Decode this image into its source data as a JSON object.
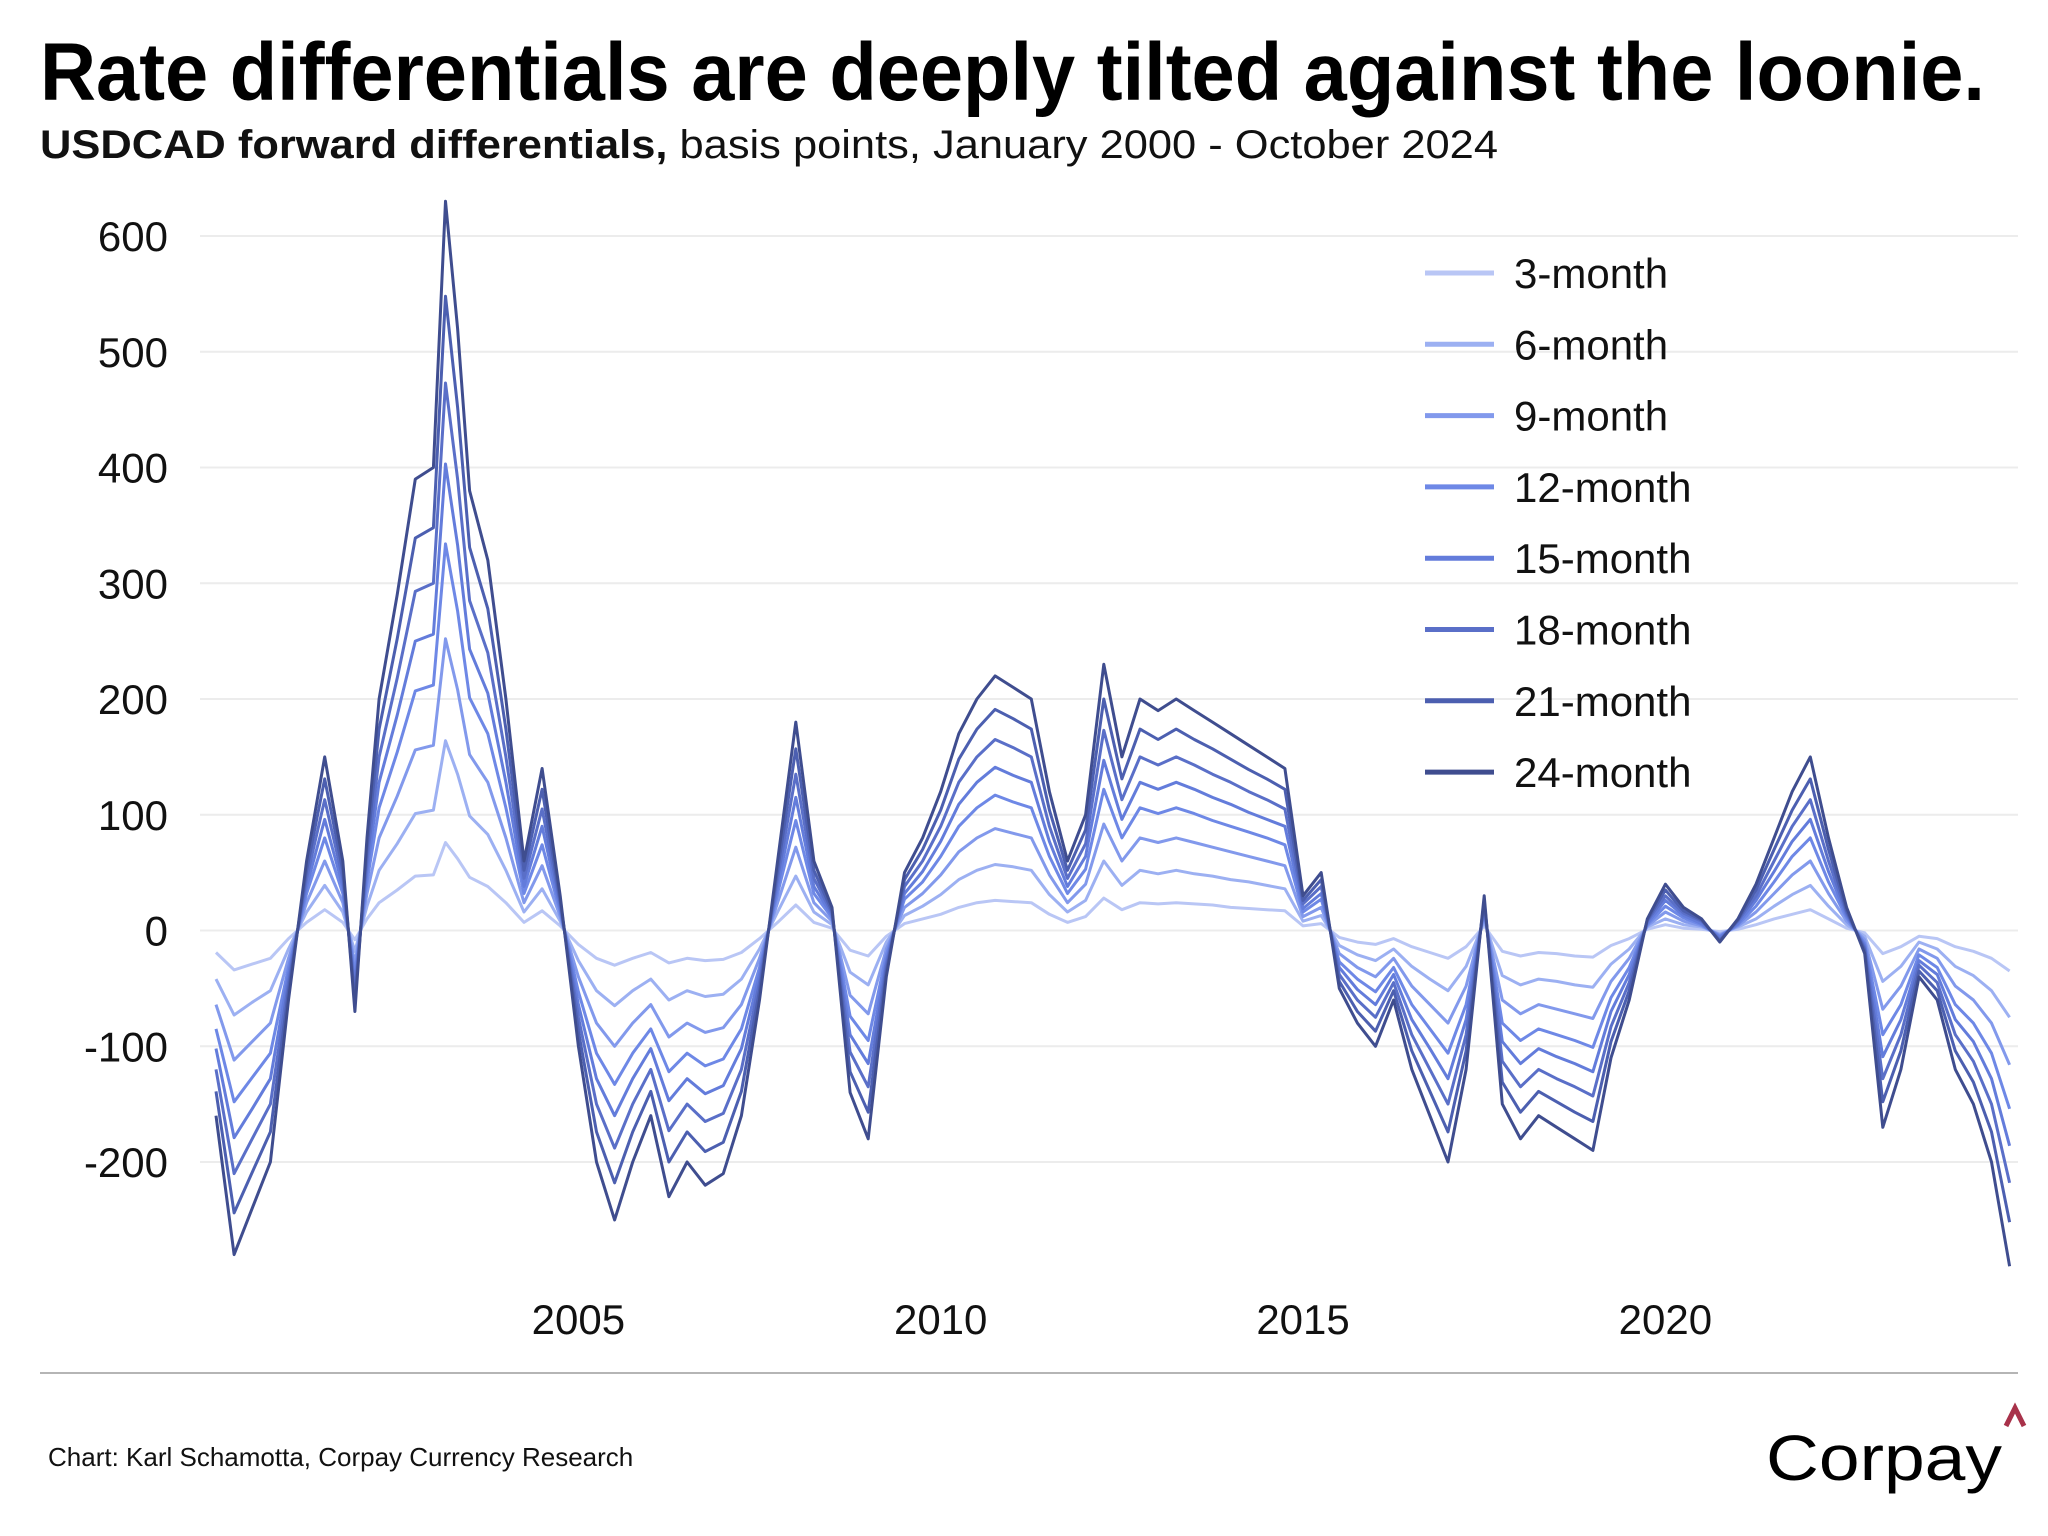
{
  "title": "Rate differentials are deeply tilted against the loonie.",
  "subtitle_bold": "USDCAD forward differentials,",
  "subtitle_rest": " basis points, January 2000 - October 2024",
  "footer": {
    "credit": "Chart: Karl Schamotta, Corpay Currency Research",
    "logo_text": "Corpay",
    "logo_caret": "^",
    "logo_caret_color": "#a8324a"
  },
  "chart_data": {
    "type": "line",
    "title": "Rate differentials are deeply tilted against the loonie.",
    "xlabel": "",
    "ylabel": "",
    "x_ticks": [
      "2005",
      "2010",
      "2015",
      "2020"
    ],
    "y_ticks": [
      600,
      500,
      400,
      300,
      200,
      100,
      0,
      -100,
      -200
    ],
    "ylim": [
      -300,
      640
    ],
    "xlim": [
      "2000-01",
      "2024-10"
    ],
    "grid": "horizontal",
    "legend_placement": "top-right",
    "x": [
      "2000-01",
      "2000-04",
      "2000-07",
      "2000-10",
      "2001-01",
      "2001-04",
      "2001-07",
      "2001-10",
      "2001-12",
      "2002-02",
      "2002-04",
      "2002-07",
      "2002-10",
      "2003-01",
      "2003-03",
      "2003-05",
      "2003-07",
      "2003-10",
      "2004-01",
      "2004-04",
      "2004-07",
      "2004-10",
      "2005-01",
      "2005-04",
      "2005-07",
      "2005-10",
      "2006-01",
      "2006-04",
      "2006-07",
      "2006-10",
      "2007-01",
      "2007-04",
      "2007-07",
      "2007-10",
      "2008-01",
      "2008-04",
      "2008-07",
      "2008-10",
      "2009-01",
      "2009-04",
      "2009-07",
      "2009-10",
      "2010-01",
      "2010-04",
      "2010-07",
      "2010-10",
      "2011-01",
      "2011-04",
      "2011-07",
      "2011-10",
      "2012-01",
      "2012-04",
      "2012-07",
      "2012-10",
      "2013-01",
      "2013-04",
      "2013-07",
      "2013-10",
      "2014-01",
      "2014-04",
      "2014-07",
      "2014-10",
      "2015-01",
      "2015-04",
      "2015-07",
      "2015-10",
      "2016-01",
      "2016-04",
      "2016-07",
      "2016-10",
      "2017-01",
      "2017-04",
      "2017-07",
      "2017-10",
      "2018-01",
      "2018-04",
      "2018-07",
      "2018-10",
      "2019-01",
      "2019-04",
      "2019-07",
      "2019-10",
      "2020-01",
      "2020-04",
      "2020-07",
      "2020-10",
      "2021-01",
      "2021-04",
      "2021-07",
      "2021-10",
      "2022-01",
      "2022-04",
      "2022-07",
      "2022-10",
      "2023-01",
      "2023-04",
      "2023-07",
      "2023-10",
      "2024-01",
      "2024-04",
      "2024-07",
      "2024-10"
    ],
    "series": [
      {
        "name": "3-month",
        "color": "#b9c6f5",
        "values": [
          -19,
          -34,
          -29,
          -24,
          -7,
          7,
          18,
          7,
          -8,
          10,
          24,
          35,
          47,
          48,
          76,
          62,
          46,
          38,
          24,
          7,
          17,
          4,
          -12,
          -24,
          -30,
          -24,
          -19,
          -28,
          -24,
          -26,
          -25,
          -19,
          -7,
          7,
          22,
          7,
          2,
          -17,
          -22,
          -5,
          6,
          10,
          14,
          20,
          24,
          26,
          25,
          24,
          14,
          7,
          12,
          28,
          18,
          24,
          23,
          24,
          23,
          22,
          20,
          19,
          18,
          17,
          4,
          6,
          -6,
          -10,
          -12,
          -7,
          -14,
          -19,
          -24,
          -14,
          4,
          -18,
          -22,
          -19,
          -20,
          -22,
          -23,
          -13,
          -7,
          1,
          5,
          2,
          1,
          -1,
          1,
          5,
          10,
          14,
          18,
          10,
          2,
          -2,
          -20,
          -14,
          -5,
          -7,
          -14,
          -18,
          -24,
          -35
        ]
      },
      {
        "name": "6-month",
        "color": "#9cb0f2",
        "values": [
          -42,
          -73,
          -62,
          -52,
          -16,
          16,
          39,
          16,
          -18,
          21,
          52,
          75,
          101,
          104,
          164,
          135,
          99,
          83,
          52,
          16,
          36,
          8,
          -26,
          -52,
          -65,
          -52,
          -42,
          -60,
          -52,
          -57,
          -55,
          -42,
          -16,
          16,
          47,
          16,
          5,
          -36,
          -47,
          -10,
          13,
          21,
          31,
          44,
          52,
          57,
          55,
          52,
          31,
          16,
          26,
          60,
          39,
          52,
          49,
          52,
          49,
          47,
          44,
          42,
          39,
          36,
          8,
          13,
          -13,
          -21,
          -26,
          -16,
          -31,
          -42,
          -52,
          -31,
          8,
          -39,
          -47,
          -42,
          -44,
          -47,
          -49,
          -29,
          -16,
          3,
          10,
          5,
          3,
          -3,
          3,
          10,
          21,
          31,
          39,
          21,
          5,
          -5,
          -44,
          -31,
          -10,
          -16,
          -31,
          -39,
          -52,
          -75
        ]
      },
      {
        "name": "9-month",
        "color": "#8299ec",
        "values": [
          -64,
          -112,
          -96,
          -80,
          -24,
          24,
          60,
          24,
          -28,
          32,
          80,
          116,
          156,
          160,
          252,
          208,
          152,
          128,
          80,
          24,
          56,
          12,
          -40,
          -80,
          -100,
          -80,
          -64,
          -92,
          -80,
          -88,
          -84,
          -64,
          -24,
          24,
          72,
          24,
          8,
          -56,
          -72,
          -16,
          20,
          32,
          48,
          68,
          80,
          88,
          84,
          80,
          48,
          24,
          40,
          92,
          60,
          80,
          76,
          80,
          76,
          72,
          68,
          64,
          60,
          56,
          12,
          20,
          -20,
          -32,
          -40,
          -24,
          -48,
          -64,
          -80,
          -48,
          12,
          -60,
          -72,
          -64,
          -68,
          -72,
          -76,
          -44,
          -24,
          4,
          16,
          8,
          4,
          -4,
          4,
          16,
          32,
          48,
          60,
          32,
          8,
          -8,
          -68,
          -48,
          -16,
          -24,
          -48,
          -60,
          -80,
          -116
        ]
      },
      {
        "name": "12-month",
        "color": "#6e88e6",
        "values": [
          -85,
          -148,
          -127,
          -106,
          -32,
          32,
          80,
          32,
          -37,
          42,
          106,
          154,
          207,
          212,
          334,
          276,
          201,
          170,
          106,
          32,
          74,
          16,
          -53,
          -106,
          -133,
          -106,
          -85,
          -122,
          -106,
          -117,
          -111,
          -85,
          -32,
          32,
          95,
          32,
          11,
          -74,
          -95,
          -21,
          27,
          42,
          64,
          90,
          106,
          117,
          111,
          106,
          64,
          32,
          53,
          122,
          80,
          106,
          101,
          106,
          101,
          95,
          90,
          85,
          80,
          74,
          16,
          27,
          -27,
          -42,
          -53,
          -32,
          -64,
          -85,
          -106,
          -64,
          16,
          -80,
          -95,
          -85,
          -90,
          -95,
          -101,
          -58,
          -32,
          5,
          21,
          11,
          5,
          -5,
          5,
          21,
          42,
          64,
          80,
          42,
          11,
          -11,
          -90,
          -64,
          -21,
          -32,
          -64,
          -80,
          -106,
          -154
        ]
      },
      {
        "name": "15-month",
        "color": "#637cdb",
        "values": [
          -102,
          -179,
          -154,
          -128,
          -38,
          38,
          96,
          38,
          -45,
          51,
          128,
          186,
          250,
          256,
          403,
          333,
          243,
          205,
          128,
          38,
          90,
          19,
          -64,
          -128,
          -160,
          -128,
          -102,
          -147,
          -128,
          -141,
          -134,
          -102,
          -38,
          38,
          115,
          38,
          13,
          -90,
          -115,
          -26,
          32,
          51,
          77,
          109,
          128,
          141,
          134,
          128,
          77,
          38,
          64,
          147,
          96,
          128,
          122,
          128,
          122,
          115,
          109,
          102,
          96,
          90,
          19,
          32,
          -32,
          -51,
          -64,
          -38,
          -77,
          -102,
          -128,
          -77,
          19,
          -96,
          -115,
          -102,
          -109,
          -115,
          -122,
          -70,
          -38,
          6,
          26,
          13,
          6,
          -6,
          6,
          26,
          51,
          77,
          96,
          51,
          13,
          -13,
          -109,
          -77,
          -26,
          -38,
          -77,
          -96,
          -128,
          -186
        ]
      },
      {
        "name": "18-month",
        "color": "#5a6fc8",
        "values": [
          -120,
          -210,
          -180,
          -150,
          -45,
          45,
          113,
          45,
          -53,
          60,
          150,
          218,
          293,
          300,
          473,
          390,
          285,
          240,
          150,
          45,
          105,
          23,
          -75,
          -150,
          -188,
          -150,
          -120,
          -173,
          -150,
          -165,
          -158,
          -120,
          -45,
          45,
          135,
          45,
          15,
          -105,
          -135,
          -30,
          38,
          60,
          90,
          128,
          150,
          165,
          158,
          150,
          90,
          45,
          75,
          173,
          113,
          150,
          143,
          150,
          143,
          135,
          128,
          120,
          113,
          105,
          23,
          38,
          -38,
          -60,
          -75,
          -45,
          -90,
          -120,
          -150,
          -90,
          23,
          -113,
          -135,
          -120,
          -128,
          -135,
          -143,
          -83,
          -45,
          8,
          30,
          15,
          8,
          -8,
          8,
          30,
          60,
          90,
          113,
          60,
          15,
          -15,
          -128,
          -90,
          -30,
          -45,
          -90,
          -113,
          -150,
          -218
        ]
      },
      {
        "name": "21-month",
        "color": "#4c5fb0",
        "values": [
          -139,
          -244,
          -209,
          -174,
          -52,
          52,
          131,
          52,
          -61,
          70,
          174,
          252,
          339,
          348,
          548,
          452,
          331,
          278,
          174,
          52,
          122,
          26,
          -87,
          -174,
          -218,
          -174,
          -139,
          -200,
          -174,
          -191,
          -183,
          -139,
          -52,
          52,
          157,
          52,
          17,
          -122,
          -157,
          -35,
          44,
          70,
          104,
          148,
          174,
          191,
          183,
          174,
          104,
          52,
          87,
          200,
          131,
          174,
          165,
          174,
          165,
          157,
          148,
          139,
          131,
          122,
          26,
          44,
          -44,
          -70,
          -87,
          -52,
          -104,
          -139,
          -174,
          -104,
          26,
          -131,
          -157,
          -139,
          -148,
          -157,
          -165,
          -96,
          -52,
          9,
          35,
          17,
          9,
          -9,
          9,
          35,
          70,
          104,
          131,
          70,
          17,
          -17,
          -148,
          -104,
          -35,
          -52,
          -104,
          -131,
          -174,
          -252
        ]
      },
      {
        "name": "24-month",
        "color": "#3f4d8f",
        "values": [
          -160,
          -280,
          -240,
          -200,
          -60,
          60,
          150,
          60,
          -70,
          80,
          200,
          290,
          390,
          400,
          630,
          520,
          380,
          320,
          200,
          60,
          140,
          30,
          -100,
          -200,
          -250,
          -200,
          -160,
          -230,
          -200,
          -220,
          -210,
          -160,
          -60,
          60,
          180,
          60,
          20,
          -140,
          -180,
          -40,
          50,
          80,
          120,
          170,
          200,
          220,
          210,
          200,
          120,
          60,
          100,
          230,
          150,
          200,
          190,
          200,
          190,
          180,
          170,
          160,
          150,
          140,
          30,
          50,
          -50,
          -80,
          -100,
          -60,
          -120,
          -160,
          -200,
          -120,
          30,
          -150,
          -180,
          -160,
          -170,
          -180,
          -190,
          -110,
          -60,
          10,
          40,
          20,
          10,
          -10,
          10,
          40,
          80,
          120,
          150,
          80,
          20,
          -20,
          -170,
          -120,
          -40,
          -60,
          -120,
          -150,
          -200,
          -290
        ]
      }
    ]
  }
}
